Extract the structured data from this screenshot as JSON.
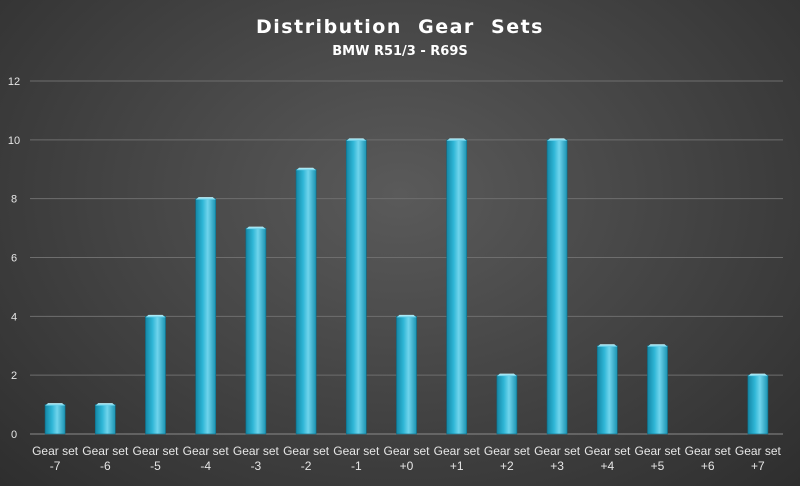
{
  "chart_data": {
    "type": "bar",
    "title": "Distribution  Gear  Sets",
    "subtitle": "BMW R51/3 - R69S",
    "xlabel": "",
    "ylabel": "",
    "categories": [
      [
        "Gear set",
        "-7"
      ],
      [
        "Gear set",
        "-6"
      ],
      [
        "Gear set",
        "-5"
      ],
      [
        "Gear set",
        "-4"
      ],
      [
        "Gear set",
        "-3"
      ],
      [
        "Gear set",
        "-2"
      ],
      [
        "Gear set",
        "-1"
      ],
      [
        "Gear set",
        "+0"
      ],
      [
        "Gear set",
        "+1"
      ],
      [
        "Gear set",
        "+2"
      ],
      [
        "Gear set",
        "+3"
      ],
      [
        "Gear set",
        "+4"
      ],
      [
        "Gear set",
        "+5"
      ],
      [
        "Gear set",
        "+6"
      ],
      [
        "Gear set",
        "+7"
      ]
    ],
    "values": [
      1,
      1,
      4,
      8,
      7,
      9,
      10,
      4,
      10,
      2,
      10,
      3,
      3,
      0,
      2
    ],
    "ylim": [
      0,
      12
    ],
    "yticks": [
      0,
      2,
      4,
      6,
      8,
      10,
      12
    ],
    "grid": true,
    "legend": "none",
    "colors": {
      "bar_top": "#8fe6f6",
      "bar_mid": "#2fb6d6",
      "bar_bottom": "#1387a6",
      "bar_edge": "#0f6d86"
    }
  }
}
